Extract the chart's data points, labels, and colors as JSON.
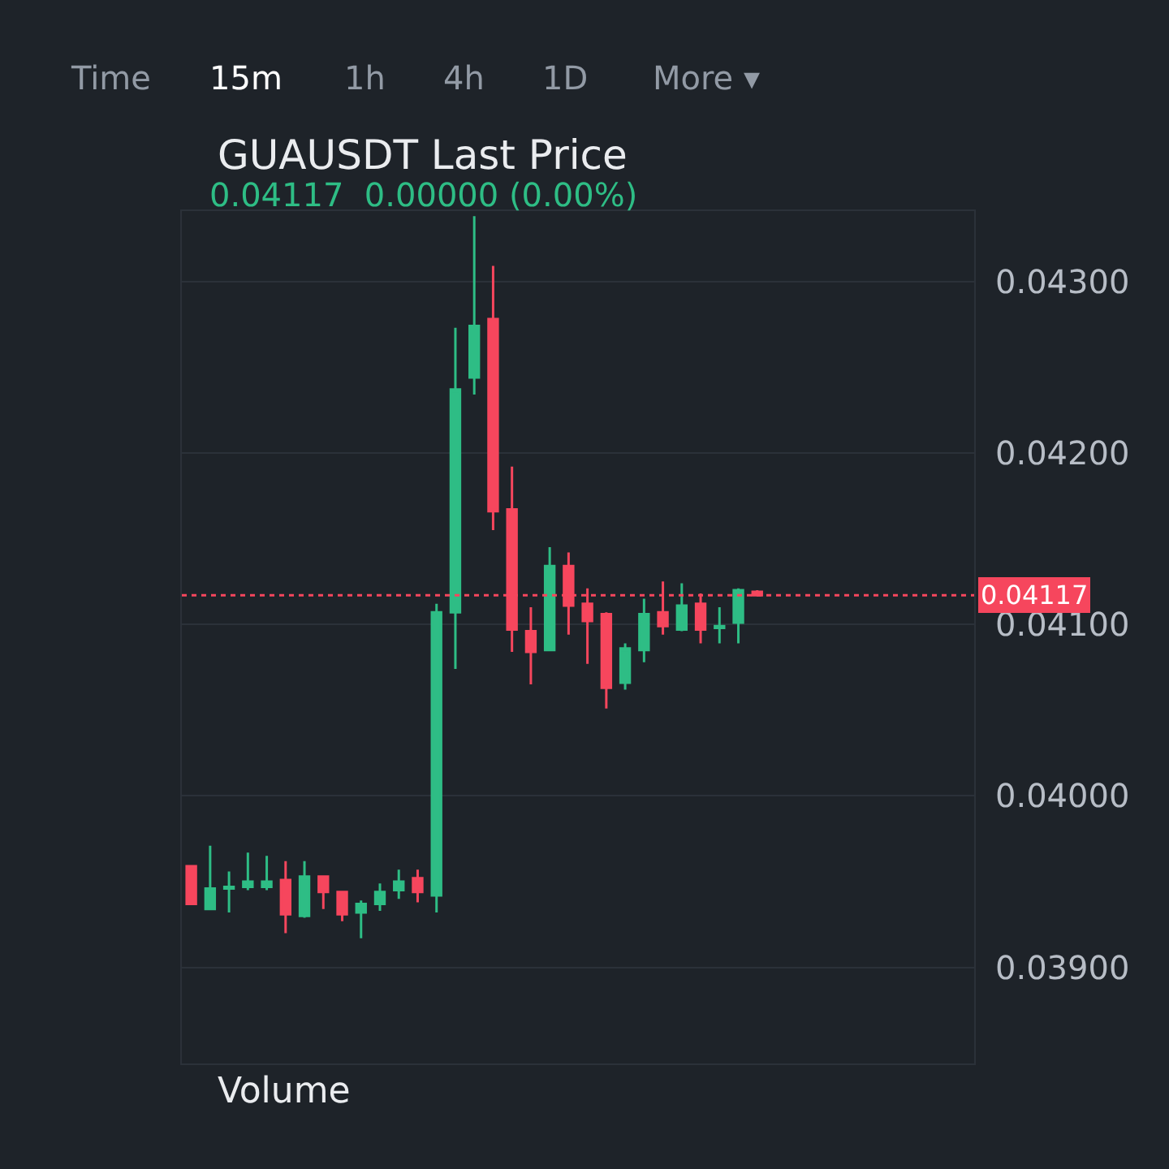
{
  "chart_data": {
    "type": "candlestick",
    "title": "GUAUSDT Last Price",
    "subtitle": "0.04117  0.00000 (0.00%)",
    "annotations": [
      "Time",
      "15m",
      "1h",
      "4h",
      "1D",
      "More ▾",
      "Volume"
    ],
    "categories": [
      null,
      null,
      null,
      null,
      null,
      null,
      null,
      null,
      null,
      null,
      null,
      null,
      null,
      null,
      null,
      null,
      null,
      null,
      null,
      null,
      null,
      null,
      null,
      null,
      null,
      null,
      null,
      null,
      null,
      null,
      null,
      null,
      null,
      null,
      null,
      null,
      null,
      null,
      null,
      null,
      null,
      null
    ],
    "ohlc": [
      [
        0.03959,
        0.03959,
        0.03937,
        0.03937
      ],
      [
        0.03934,
        0.03971,
        0.03934,
        0.03946
      ],
      [
        0.03946,
        0.03956,
        0.03932,
        0.03947
      ],
      [
        0.03947,
        0.03967,
        0.03945,
        0.0395
      ],
      [
        0.03947,
        0.03965,
        0.03945,
        0.0395
      ],
      [
        0.03951,
        0.03962,
        0.0392,
        0.03931
      ],
      [
        0.0393,
        0.03962,
        0.03929,
        0.03953
      ],
      [
        0.03953,
        0.03953,
        0.03934,
        0.03944
      ],
      [
        0.03944,
        0.03944,
        0.03927,
        0.03931
      ],
      [
        0.03932,
        0.03939,
        0.03917,
        0.03937
      ],
      [
        0.03937,
        0.03949,
        0.03933,
        0.03944
      ],
      [
        0.03945,
        0.03957,
        0.0394,
        0.0395
      ],
      [
        0.03952,
        0.03957,
        0.03938,
        0.03944
      ],
      [
        0.03942,
        0.04112,
        0.03932,
        0.04107
      ],
      [
        0.04107,
        0.04273,
        0.04074,
        0.04237
      ],
      [
        0.04244,
        0.04338,
        0.04234,
        0.04274
      ],
      [
        0.04278,
        0.04309,
        0.04155,
        0.04166
      ],
      [
        0.04167,
        0.04192,
        0.04084,
        0.04097
      ],
      [
        0.04096,
        0.0411,
        0.04065,
        0.04084
      ],
      [
        0.04085,
        0.04145,
        0.04085,
        0.04134
      ],
      [
        0.04134,
        0.04142,
        0.04094,
        0.04111
      ],
      [
        0.04112,
        0.04121,
        0.04077,
        0.04102
      ],
      [
        0.04106,
        0.04107,
        0.04051,
        0.04063
      ],
      [
        0.04066,
        0.04089,
        0.04062,
        0.04086
      ],
      [
        0.04085,
        0.04115,
        0.04078,
        0.04106
      ],
      [
        0.04107,
        0.04125,
        0.04094,
        0.04099
      ],
      [
        0.04097,
        0.04124,
        0.04096,
        0.04111
      ],
      [
        0.04112,
        0.04118,
        0.04089,
        0.04097
      ],
      [
        0.04098,
        0.0411,
        0.04089,
        0.04099
      ],
      [
        0.04101,
        0.04121,
        0.04089,
        0.0412
      ],
      [
        0.04119,
        0.0412,
        0.04117,
        0.04117
      ],
      null,
      null,
      null,
      null,
      null,
      null,
      null,
      null,
      null,
      null,
      null
    ],
    "colors": [
      "#f6465d",
      "#2ebd85",
      "#2ebd85",
      "#2ebd85",
      "#2ebd85",
      "#f6465d",
      "#2ebd85",
      "#f6465d",
      "#f6465d",
      "#2ebd85",
      "#2ebd85",
      "#2ebd85",
      "#f6465d",
      "#2ebd85",
      "#2ebd85",
      "#2ebd85",
      "#f6465d",
      "#f6465d",
      "#f6465d",
      "#2ebd85",
      "#f6465d",
      "#f6465d",
      "#f6465d",
      "#2ebd85",
      "#2ebd85",
      "#f6465d",
      "#2ebd85",
      "#f6465d",
      "#2ebd85",
      "#2ebd85",
      "#f6465d",
      null,
      null,
      null,
      null,
      null,
      null,
      null,
      null,
      null,
      null,
      null
    ],
    "ylim": [
      0.03844,
      0.04341
    ],
    "yticks": [
      {
        "value": 0.039,
        "label": "0.03900"
      },
      {
        "value": 0.04,
        "label": "0.04000"
      },
      {
        "value": 0.041,
        "label": "0.04100"
      },
      {
        "value": 0.042,
        "label": "0.04200"
      },
      {
        "value": 0.043,
        "label": "0.04300"
      }
    ],
    "ref_lines": [
      {
        "axis": "y",
        "value": 0.04117,
        "label": "0.04117",
        "color": "#f6465d",
        "line_style": "dotted"
      }
    ],
    "grid": "y",
    "tick_labels": "y"
  }
}
